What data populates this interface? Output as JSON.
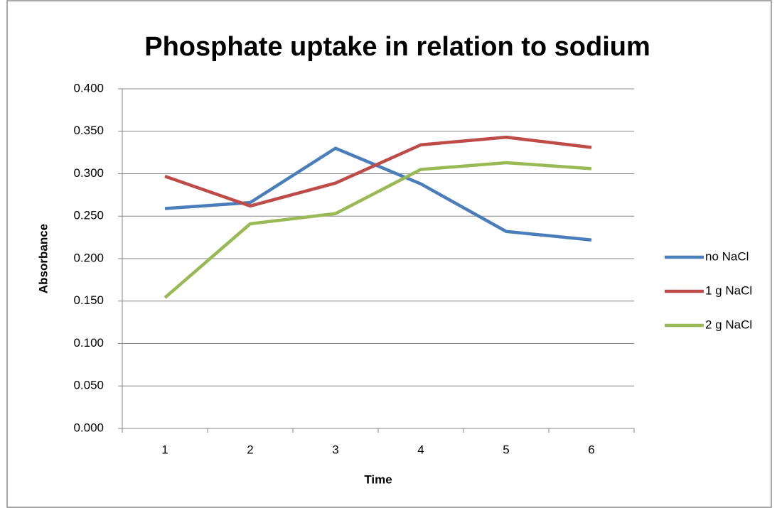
{
  "chart_data": {
    "type": "line",
    "title": "Phosphate uptake in relation to sodium",
    "x_label": "Time",
    "y_label": "Absorbance",
    "categories": [
      "1",
      "2",
      "3",
      "4",
      "5",
      "6"
    ],
    "series": [
      {
        "name": "no NaCl",
        "color": "#4a7ebb",
        "values": [
          0.259,
          0.266,
          0.33,
          0.288,
          0.232,
          0.222
        ]
      },
      {
        "name": "1 g NaCl",
        "color": "#be4b48",
        "values": [
          0.297,
          0.262,
          0.289,
          0.334,
          0.343,
          0.331
        ]
      },
      {
        "name": "2 g NaCl",
        "color": "#98b954",
        "values": [
          0.154,
          0.241,
          0.253,
          0.305,
          0.313,
          0.306
        ]
      }
    ],
    "ylim": [
      0,
      0.4
    ],
    "yticks": [
      {
        "value": 0,
        "label": "0.000"
      },
      {
        "value": 0.05,
        "label": "0.050"
      },
      {
        "value": 0.1,
        "label": "0.100"
      },
      {
        "value": 0.15,
        "label": "0.150"
      },
      {
        "value": 0.2,
        "label": "0.200"
      },
      {
        "value": 0.25,
        "label": "0.250"
      },
      {
        "value": 0.3,
        "label": "0.300"
      },
      {
        "value": 0.35,
        "label": "0.350"
      },
      {
        "value": 0.4,
        "label": "0.400"
      }
    ],
    "grid": true,
    "legend": "right"
  }
}
